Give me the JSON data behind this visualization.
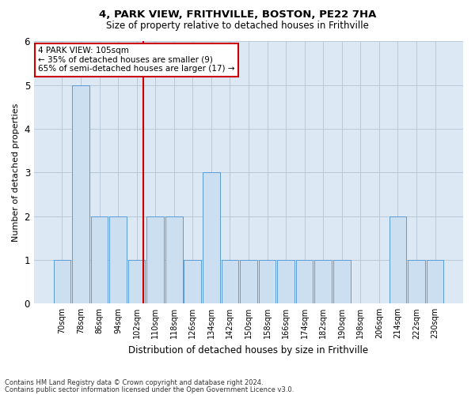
{
  "title1": "4, PARK VIEW, FRITHVILLE, BOSTON, PE22 7HA",
  "title2": "Size of property relative to detached houses in Frithville",
  "xlabel": "Distribution of detached houses by size in Frithville",
  "ylabel": "Number of detached properties",
  "categories": [
    "70sqm",
    "78sqm",
    "86sqm",
    "94sqm",
    "102sqm",
    "110sqm",
    "118sqm",
    "126sqm",
    "134sqm",
    "142sqm",
    "150sqm",
    "158sqm",
    "166sqm",
    "174sqm",
    "182sqm",
    "190sqm",
    "198sqm",
    "206sqm",
    "214sqm",
    "222sqm",
    "230sqm"
  ],
  "values": [
    1,
    5,
    2,
    2,
    1,
    2,
    2,
    1,
    3,
    1,
    1,
    1,
    1,
    1,
    1,
    1,
    0,
    0,
    2,
    1,
    1
  ],
  "bar_color": "#ccdff0",
  "bar_edge_color": "#5b9bd5",
  "highlight_line_color": "#cc0000",
  "annotation_text": "4 PARK VIEW: 105sqm\n← 35% of detached houses are smaller (9)\n65% of semi-detached houses are larger (17) →",
  "annotation_box_color": "#ffffff",
  "annotation_box_edge": "#cc0000",
  "footer1": "Contains HM Land Registry data © Crown copyright and database right 2024.",
  "footer2": "Contains public sector information licensed under the Open Government Licence v3.0.",
  "ylim": [
    0,
    6
  ],
  "yticks": [
    0,
    1,
    2,
    3,
    4,
    5,
    6
  ],
  "bg_color": "#ffffff",
  "chart_bg": "#dce9f5",
  "grid_color": "#b8c8d8"
}
